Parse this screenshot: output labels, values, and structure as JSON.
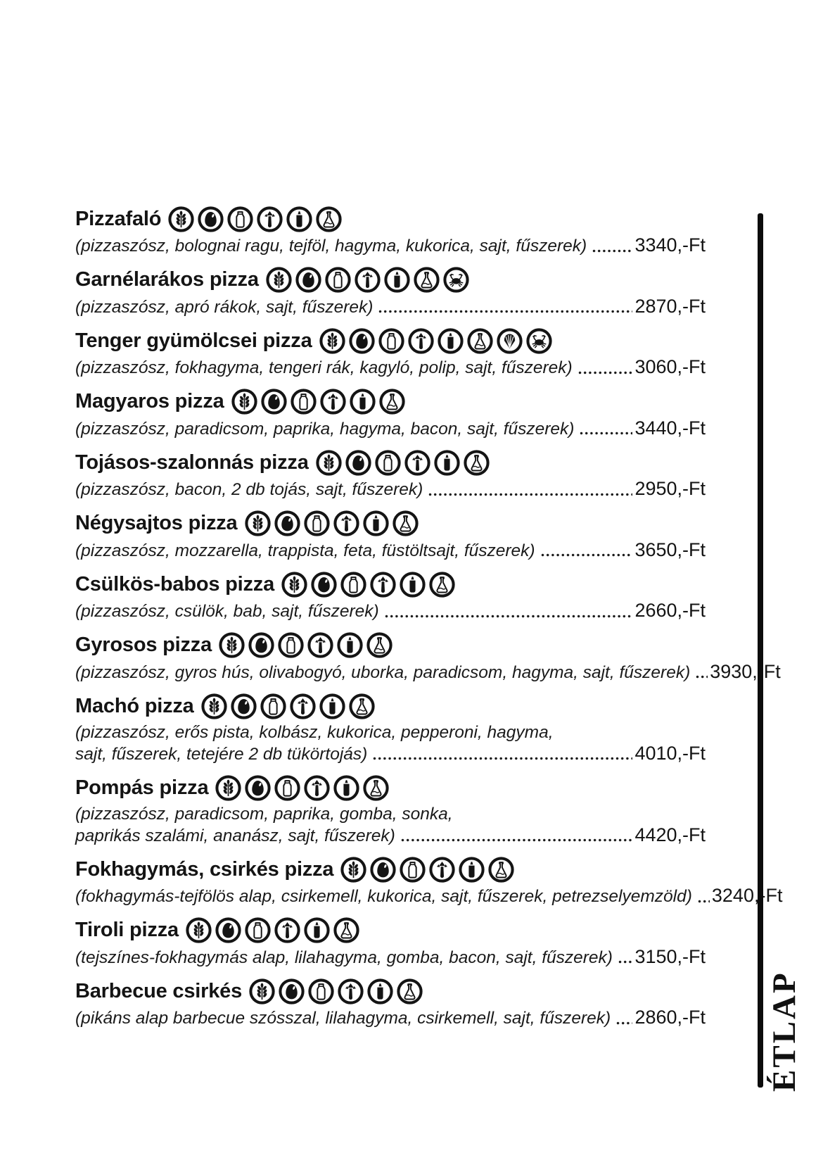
{
  "page": {
    "background": "#ffffff",
    "text_color": "#161616",
    "divider_color": "#0c0c0c"
  },
  "side_label": "ÉTLAP",
  "icons": {
    "gluten": "wheat-gluten-icon",
    "egg": "egg-icon",
    "milk": "milk-bottle-icon",
    "celery": "celery-icon",
    "mustard": "mustard-bottle-icon",
    "sulphite": "sulphite-flask-icon",
    "mollusc": "shell-mollusc-icon",
    "crustacean": "crab-crustacean-icon"
  },
  "menu": {
    "items": [
      {
        "name": "Pizzafaló",
        "allergens": [
          "gluten",
          "egg",
          "milk",
          "celery",
          "mustard",
          "sulphite"
        ],
        "description_lines": [
          "(pizzaszósz, bolognai ragu, tejföl, hagyma, kukorica, sajt, fűszerek)"
        ],
        "price": "3340,-Ft"
      },
      {
        "name": "Garnélarákos pizza",
        "allergens": [
          "gluten",
          "egg",
          "milk",
          "celery",
          "mustard",
          "sulphite",
          "crustacean"
        ],
        "description_lines": [
          "(pizzaszósz, apró rákok, sajt, fűszerek)"
        ],
        "price": "2870,-Ft"
      },
      {
        "name": "Tenger gyümölcsei pizza",
        "allergens": [
          "gluten",
          "egg",
          "milk",
          "celery",
          "mustard",
          "sulphite",
          "mollusc",
          "crustacean"
        ],
        "description_lines": [
          "(pizzaszósz, fokhagyma, tengeri rák, kagyló, polip, sajt, fűszerek)"
        ],
        "price": "3060,-Ft"
      },
      {
        "name": "Magyaros pizza",
        "allergens": [
          "gluten",
          "egg",
          "milk",
          "celery",
          "mustard",
          "sulphite"
        ],
        "description_lines": [
          "(pizzaszósz, paradicsom, paprika, hagyma, bacon, sajt, fűszerek)"
        ],
        "price": "3440,-Ft"
      },
      {
        "name": "Tojásos-szalonnás pizza",
        "allergens": [
          "gluten",
          "egg",
          "milk",
          "celery",
          "mustard",
          "sulphite"
        ],
        "description_lines": [
          "(pizzaszósz, bacon, 2 db tojás, sajt, fűszerek)"
        ],
        "price": "2950,-Ft"
      },
      {
        "name": "Négysajtos pizza",
        "allergens": [
          "gluten",
          "egg",
          "milk",
          "celery",
          "mustard",
          "sulphite"
        ],
        "description_lines": [
          "(pizzaszósz, mozzarella, trappista, feta, füstöltsajt, fűszerek)"
        ],
        "price": "3650,-Ft"
      },
      {
        "name": "Csülkös-babos pizza",
        "allergens": [
          "gluten",
          "egg",
          "milk",
          "celery",
          "mustard",
          "sulphite"
        ],
        "description_lines": [
          "(pizzaszósz, csülök, bab, sajt, fűszerek)"
        ],
        "price": "2660,-Ft"
      },
      {
        "name": "Gyrosos pizza",
        "allergens": [
          "gluten",
          "egg",
          "milk",
          "celery",
          "mustard",
          "sulphite"
        ],
        "description_lines": [
          "(pizzaszósz, gyros hús, olivabogyó, uborka, paradicsom, hagyma, sajt, fűszerek)"
        ],
        "price": "3930,-Ft"
      },
      {
        "name": "Machó pizza",
        "allergens": [
          "gluten",
          "egg",
          "milk",
          "celery",
          "mustard",
          "sulphite"
        ],
        "description_lines": [
          "(pizzaszósz, erős pista, kolbász, kukorica, pepperoni, hagyma,",
          "sajt, fűszerek, tetejére 2 db tükörtojás)"
        ],
        "price": "4010,-Ft"
      },
      {
        "name": "Pompás pizza",
        "allergens": [
          "gluten",
          "egg",
          "milk",
          "celery",
          "mustard",
          "sulphite"
        ],
        "description_lines": [
          "(pizzaszósz, paradicsom, paprika, gomba, sonka,",
          "paprikás szalámi, ananász, sajt, fűszerek)"
        ],
        "price": "4420,-Ft"
      },
      {
        "name": "Fokhagymás, csirkés pizza",
        "allergens": [
          "gluten",
          "egg",
          "milk",
          "celery",
          "mustard",
          "sulphite"
        ],
        "description_lines": [
          "(fokhagymás-tejfölös alap, csirkemell, kukorica, sajt, fűszerek, petrezselyemzöld)"
        ],
        "price": "3240,-Ft"
      },
      {
        "name": "Tiroli pizza",
        "allergens": [
          "gluten",
          "egg",
          "milk",
          "celery",
          "mustard",
          "sulphite"
        ],
        "description_lines": [
          "(tejszínes-fokhagymás alap, lilahagyma, gomba, bacon, sajt, fűszerek)"
        ],
        "price": "3150,-Ft"
      },
      {
        "name": "Barbecue csirkés",
        "allergens": [
          "gluten",
          "egg",
          "milk",
          "celery",
          "mustard",
          "sulphite"
        ],
        "description_lines": [
          "(pikáns alap barbecue szósszal, lilahagyma, csirkemell, sajt, fűszerek)"
        ],
        "price": "2860,-Ft"
      }
    ]
  }
}
